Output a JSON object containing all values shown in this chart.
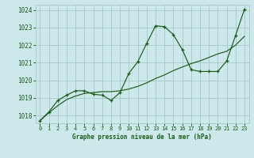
{
  "title": "Graphe pression niveau de la mer (hPa)",
  "background_color": "#cce8ea",
  "grid_color": "#aacccc",
  "line_color": "#1a5c1a",
  "xlim": [
    -0.5,
    23.5
  ],
  "ylim": [
    1017.55,
    1024.3
  ],
  "yticks": [
    1018,
    1019,
    1020,
    1021,
    1022,
    1023,
    1024
  ],
  "xticks": [
    0,
    1,
    2,
    3,
    4,
    5,
    6,
    7,
    8,
    9,
    10,
    11,
    12,
    13,
    14,
    15,
    16,
    17,
    18,
    19,
    20,
    21,
    22,
    23
  ],
  "wavy_x": [
    0,
    1,
    2,
    3,
    4,
    5,
    6,
    7,
    8,
    9,
    10,
    11,
    12,
    13,
    14,
    15,
    16,
    17,
    18,
    19,
    20,
    21,
    22,
    23
  ],
  "wavy_y": [
    1017.7,
    1018.2,
    1018.85,
    1019.15,
    1019.4,
    1019.4,
    1019.2,
    1019.15,
    1018.85,
    1019.3,
    1020.4,
    1021.05,
    1022.1,
    1023.1,
    1023.05,
    1022.6,
    1021.75,
    1020.6,
    1020.5,
    1020.5,
    1020.5,
    1021.1,
    1022.55,
    1024.05
  ],
  "trend_x": [
    0,
    1,
    2,
    3,
    4,
    5,
    6,
    7,
    8,
    9,
    10,
    11,
    12,
    13,
    14,
    15,
    16,
    17,
    18,
    19,
    20,
    21,
    22,
    23
  ],
  "trend_y": [
    1017.7,
    1018.15,
    1018.55,
    1018.9,
    1019.1,
    1019.25,
    1019.3,
    1019.35,
    1019.35,
    1019.4,
    1019.5,
    1019.65,
    1019.85,
    1020.1,
    1020.3,
    1020.55,
    1020.75,
    1020.95,
    1021.1,
    1021.3,
    1021.5,
    1021.65,
    1022.0,
    1022.5
  ]
}
